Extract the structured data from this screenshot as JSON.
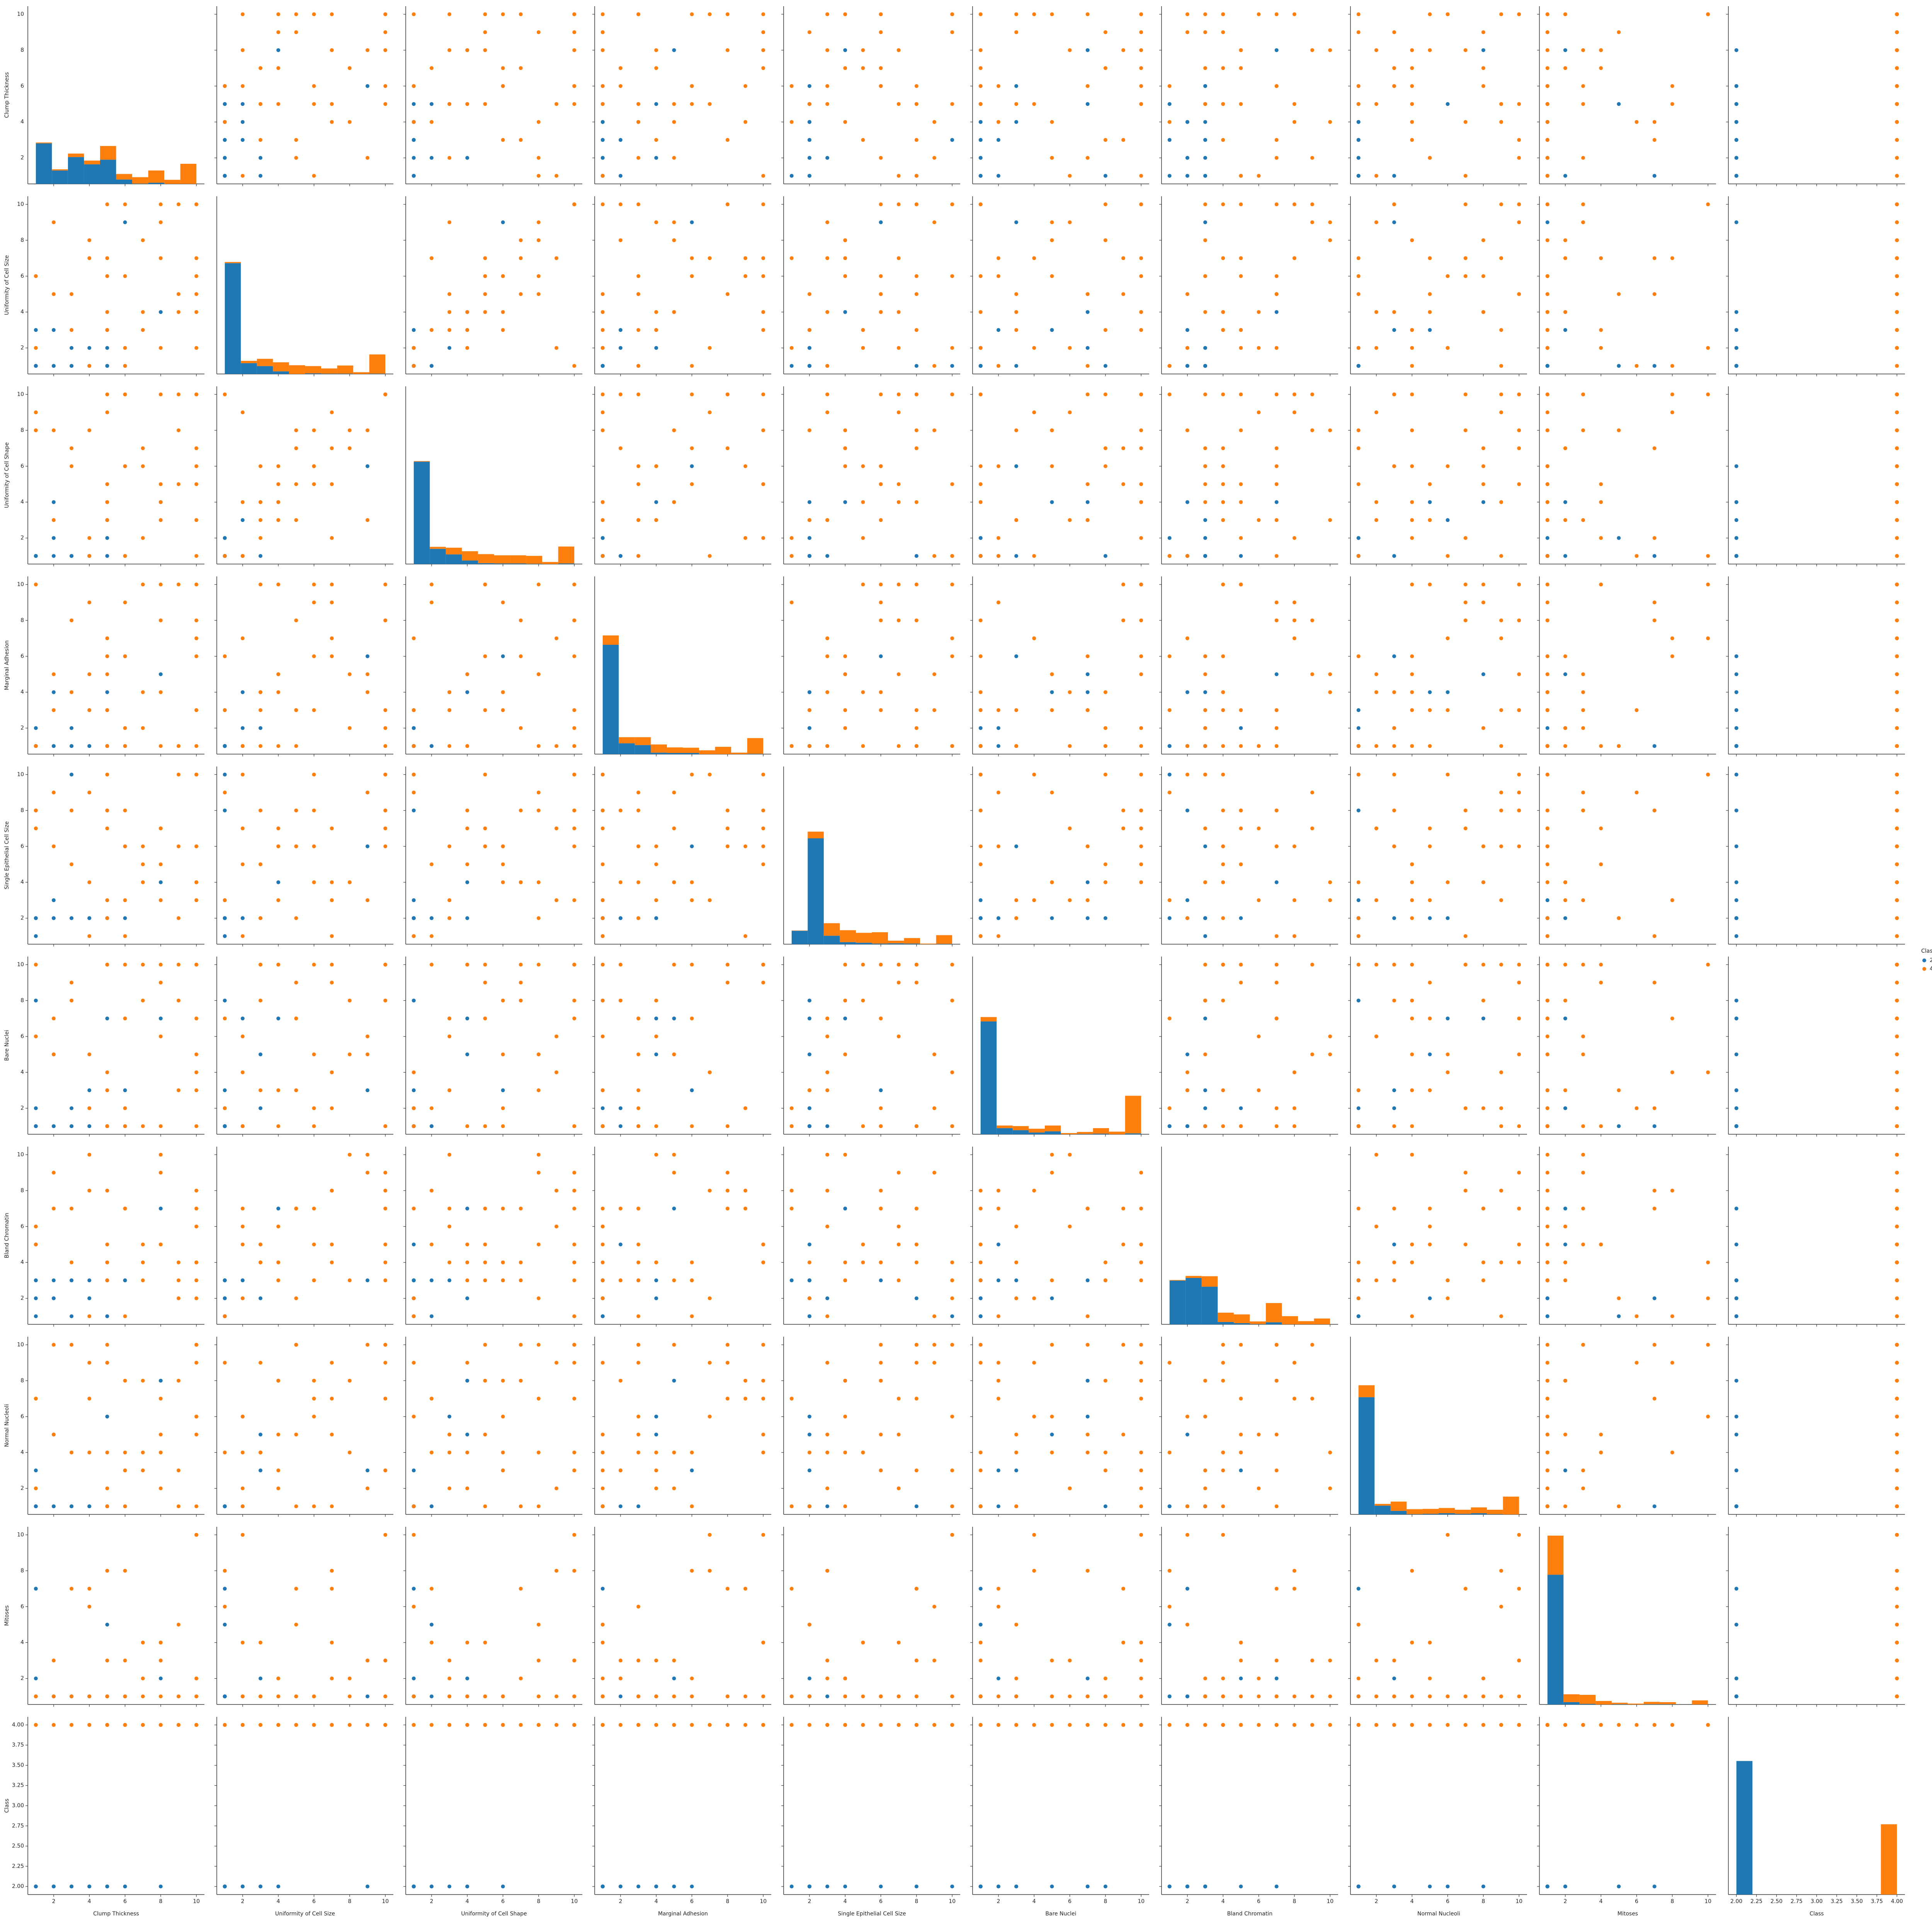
{
  "chart_data": {
    "type": "pairplot",
    "variables": [
      "Clump Thickness",
      "Uniformity of Cell Size",
      "Uniformity of Cell Shape",
      "Marginal Adhesion",
      "Single Epithelial Cell Size",
      "Bare Nuclei",
      "Bland Chromatin",
      "Normal Nucleoli",
      "Mitoses",
      "Class"
    ],
    "axes": [
      {
        "lim": [
          0.55,
          10.45
        ],
        "ticks": [
          2,
          4,
          6,
          8,
          10
        ],
        "bins": [
          1,
          1.9,
          2.8,
          3.7,
          4.6,
          5.5,
          6.4,
          7.3,
          8.2,
          9.1,
          10
        ]
      },
      {
        "lim": [
          0.55,
          10.45
        ],
        "ticks": [
          2,
          4,
          6,
          8,
          10
        ],
        "bins": [
          1,
          1.9,
          2.8,
          3.7,
          4.6,
          5.5,
          6.4,
          7.3,
          8.2,
          9.1,
          10
        ]
      },
      {
        "lim": [
          0.55,
          10.45
        ],
        "ticks": [
          2,
          4,
          6,
          8,
          10
        ],
        "bins": [
          1,
          1.9,
          2.8,
          3.7,
          4.6,
          5.5,
          6.4,
          7.3,
          8.2,
          9.1,
          10
        ]
      },
      {
        "lim": [
          0.55,
          10.45
        ],
        "ticks": [
          2,
          4,
          6,
          8,
          10
        ],
        "bins": [
          1,
          1.9,
          2.8,
          3.7,
          4.6,
          5.5,
          6.4,
          7.3,
          8.2,
          9.1,
          10
        ]
      },
      {
        "lim": [
          0.55,
          10.45
        ],
        "ticks": [
          2,
          4,
          6,
          8,
          10
        ],
        "bins": [
          1,
          1.9,
          2.8,
          3.7,
          4.6,
          5.5,
          6.4,
          7.3,
          8.2,
          9.1,
          10
        ]
      },
      {
        "lim": [
          0.55,
          10.45
        ],
        "ticks": [
          2,
          4,
          6,
          8,
          10
        ],
        "bins": [
          1,
          1.9,
          2.8,
          3.7,
          4.6,
          5.5,
          6.4,
          7.3,
          8.2,
          9.1,
          10
        ]
      },
      {
        "lim": [
          0.55,
          10.45
        ],
        "ticks": [
          2,
          4,
          6,
          8,
          10
        ],
        "bins": [
          1,
          1.9,
          2.8,
          3.7,
          4.6,
          5.5,
          6.4,
          7.3,
          8.2,
          9.1,
          10
        ]
      },
      {
        "lim": [
          0.55,
          10.45
        ],
        "ticks": [
          2,
          4,
          6,
          8,
          10
        ],
        "bins": [
          1,
          1.9,
          2.8,
          3.7,
          4.6,
          5.5,
          6.4,
          7.3,
          8.2,
          9.1,
          10
        ]
      },
      {
        "lim": [
          0.55,
          10.45
        ],
        "ticks": [
          2,
          4,
          6,
          8,
          10
        ],
        "bins": [
          1,
          1.9,
          2.8,
          3.7,
          4.6,
          5.5,
          6.4,
          7.3,
          8.2,
          9.1,
          10
        ]
      },
      {
        "lim": [
          1.9,
          4.1
        ],
        "ticks": [
          {
            "value": 2,
            "label": "2.00"
          },
          {
            "value": 2.25,
            "label": "2.25"
          },
          {
            "value": 2.5,
            "label": "2.50"
          },
          {
            "value": 2.75,
            "label": "2.75"
          },
          {
            "value": 3,
            "label": "3.00"
          },
          {
            "value": 3.25,
            "label": "3.25"
          },
          {
            "value": 3.5,
            "label": "3.50"
          },
          {
            "value": 3.75,
            "label": "3.75"
          },
          {
            "value": 4,
            "label": "4.00"
          }
        ],
        "bins": [
          2,
          2.2,
          2.4,
          2.6,
          2.8,
          3,
          3.2,
          3.4,
          3.6,
          3.8,
          4
        ]
      }
    ],
    "legend_title": "Class",
    "series": [
      {
        "name": "2",
        "color": "#1f77b4",
        "rows": [
          [
            5,
            1,
            1,
            1,
            2,
            1,
            3,
            1,
            1,
            2
          ],
          [
            3,
            1,
            1,
            1,
            2,
            2,
            3,
            1,
            1,
            2
          ],
          [
            4,
            1,
            1,
            3,
            2,
            1,
            3,
            1,
            1,
            2
          ],
          [
            1,
            1,
            1,
            1,
            2,
            1,
            1,
            1,
            1,
            2
          ],
          [
            2,
            1,
            2,
            1,
            2,
            1,
            3,
            1,
            1,
            2
          ],
          [
            1,
            1,
            1,
            1,
            1,
            1,
            3,
            1,
            1,
            2
          ],
          [
            4,
            2,
            1,
            1,
            2,
            1,
            2,
            1,
            1,
            2
          ],
          [
            6,
            1,
            1,
            1,
            2,
            1,
            3,
            1,
            1,
            2
          ],
          [
            3,
            2,
            1,
            2,
            2,
            1,
            3,
            1,
            1,
            2
          ],
          [
            5,
            2,
            3,
            4,
            2,
            7,
            3,
            6,
            1,
            2
          ],
          [
            1,
            3,
            1,
            2,
            2,
            2,
            5,
            3,
            2,
            2
          ],
          [
            8,
            4,
            4,
            5,
            4,
            7,
            7,
            8,
            2,
            2
          ],
          [
            6,
            9,
            6,
            6,
            6,
            3,
            3,
            3,
            1,
            2
          ],
          [
            2,
            1,
            1,
            1,
            3,
            1,
            2,
            1,
            1,
            2
          ],
          [
            4,
            1,
            1,
            1,
            2,
            3,
            2,
            1,
            1,
            2
          ],
          [
            3,
            1,
            1,
            1,
            10,
            1,
            1,
            1,
            1,
            2
          ],
          [
            1,
            1,
            1,
            1,
            8,
            1,
            2,
            1,
            7,
            2
          ],
          [
            5,
            1,
            2,
            1,
            2,
            1,
            1,
            1,
            5,
            2
          ],
          [
            2,
            3,
            4,
            4,
            2,
            5,
            2,
            5,
            1,
            2
          ],
          [
            1,
            1,
            1,
            1,
            2,
            8,
            3,
            1,
            1,
            2
          ]
        ],
        "hist": [
          [
            139,
            46,
            92,
            67,
            83,
            15,
            1,
            4,
            0,
            0
          ],
          [
            380,
            37,
            27,
            9,
            0,
            2,
            1,
            1,
            0,
            1
          ],
          [
            351,
            52,
            33,
            12,
            3,
            2,
            2,
            1,
            0,
            2
          ],
          [
            375,
            37,
            31,
            5,
            4,
            4,
            0,
            0,
            0,
            1
          ],
          [
            46,
            363,
            29,
            7,
            5,
            2,
            3,
            2,
            0,
            1
          ],
          [
            387,
            21,
            14,
            6,
            10,
            0,
            1,
            2,
            0,
            3
          ],
          [
            150,
            159,
            129,
            8,
            4,
            1,
            7,
            0,
            0,
            0
          ],
          [
            402,
            30,
            12,
            1,
            2,
            4,
            2,
            4,
            1,
            0
          ],
          [
            445,
            8,
            2,
            0,
            1,
            0,
            1,
            1,
            0,
            0
          ],
          [
            458,
            0,
            0,
            0,
            0,
            0,
            0,
            0,
            0,
            0
          ]
        ]
      },
      {
        "name": "4",
        "color": "#ff7f0e",
        "rows": [
          [
            8,
            10,
            10,
            8,
            7,
            10,
            9,
            7,
            1,
            4
          ],
          [
            5,
            3,
            3,
            3,
            2,
            3,
            4,
            4,
            1,
            4
          ],
          [
            8,
            7,
            5,
            10,
            7,
            9,
            5,
            5,
            4,
            4
          ],
          [
            7,
            4,
            6,
            4,
            6,
            1,
            4,
            3,
            1,
            4
          ],
          [
            10,
            7,
            7,
            6,
            4,
            10,
            4,
            1,
            2,
            4
          ],
          [
            7,
            3,
            2,
            10,
            5,
            10,
            5,
            4,
            4,
            4
          ],
          [
            10,
            5,
            5,
            3,
            6,
            7,
            7,
            10,
            1,
            4
          ],
          [
            5,
            10,
            10,
            3,
            8,
            1,
            5,
            10,
            3,
            4
          ],
          [
            5,
            4,
            4,
            5,
            7,
            10,
            3,
            2,
            1,
            4
          ],
          [
            10,
            10,
            10,
            8,
            6,
            1,
            8,
            9,
            1,
            4
          ],
          [
            6,
            2,
            1,
            1,
            1,
            1,
            7,
            1,
            1,
            4
          ],
          [
            9,
            4,
            5,
            10,
            6,
            10,
            4,
            8,
            1,
            4
          ],
          [
            3,
            5,
            7,
            8,
            8,
            9,
            7,
            10,
            7,
            4
          ],
          [
            10,
            6,
            6,
            3,
            4,
            5,
            3,
            6,
            1,
            4
          ],
          [
            4,
            8,
            8,
            5,
            4,
            5,
            10,
            4,
            1,
            4
          ],
          [
            10,
            10,
            10,
            10,
            10,
            10,
            4,
            10,
            10,
            4
          ],
          [
            6,
            6,
            6,
            9,
            6,
            2,
            7,
            8,
            1,
            4
          ],
          [
            5,
            6,
            5,
            6,
            10,
            1,
            3,
            1,
            1,
            4
          ],
          [
            9,
            5,
            8,
            1,
            2,
            3,
            2,
            1,
            5,
            4
          ],
          [
            8,
            2,
            4,
            1,
            5,
            1,
            5,
            4,
            4,
            4
          ],
          [
            2,
            5,
            3,
            3,
            6,
            7,
            7,
            5,
            1,
            4
          ],
          [
            10,
            4,
            3,
            1,
            3,
            3,
            6,
            5,
            2,
            4
          ],
          [
            6,
            10,
            10,
            2,
            8,
            10,
            7,
            3,
            3,
            4
          ],
          [
            1,
            6,
            8,
            10,
            8,
            10,
            5,
            7,
            1,
            4
          ],
          [
            5,
            7,
            9,
            7,
            3,
            4,
            8,
            9,
            8,
            4
          ],
          [
            4,
            1,
            1,
            3,
            9,
            2,
            1,
            9,
            6,
            4
          ],
          [
            8,
            9,
            3,
            4,
            3,
            6,
            10,
            2,
            3,
            4
          ],
          [
            3,
            3,
            6,
            4,
            5,
            8,
            4,
            4,
            1,
            4
          ],
          [
            7,
            8,
            7,
            2,
            4,
            8,
            3,
            8,
            2,
            4
          ],
          [
            9,
            10,
            10,
            1,
            10,
            8,
            3,
            3,
            1,
            4
          ],
          [
            5,
            3,
            4,
            1,
            8,
            10,
            4,
            9,
            1,
            4
          ],
          [
            10,
            2,
            1,
            7,
            10,
            4,
            2,
            6,
            10,
            4
          ],
          [
            4,
            7,
            2,
            9,
            1,
            2,
            8,
            7,
            7,
            4
          ],
          [
            2,
            9,
            8,
            5,
            9,
            5,
            9,
            10,
            3,
            4
          ],
          [
            6,
            1,
            10,
            6,
            3,
            7,
            1,
            4,
            8,
            4
          ],
          [
            1,
            2,
            9,
            1,
            7,
            6,
            6,
            2,
            1,
            4
          ]
        ],
        "hist": [
          [
            3,
            4,
            12,
            13,
            47,
            19,
            22,
            42,
            14,
            69
          ],
          [
            4,
            8,
            25,
            31,
            30,
            25,
            18,
            28,
            6,
            66
          ],
          [
            2,
            7,
            23,
            32,
            31,
            28,
            28,
            27,
            7,
            58
          ],
          [
            32,
            21,
            27,
            28,
            19,
            18,
            13,
            25,
            5,
            54
          ],
          [
            1,
            23,
            43,
            41,
            34,
            39,
            9,
            19,
            2,
            30
          ],
          [
            15,
            9,
            14,
            13,
            20,
            4,
            7,
            19,
            9,
            129
          ],
          [
            2,
            7,
            36,
            32,
            30,
            9,
            66,
            28,
            11,
            20
          ],
          [
            41,
            6,
            32,
            17,
            17,
            18,
            14,
            20,
            15,
            61
          ],
          [
            134,
            27,
            31,
            12,
            5,
            3,
            8,
            7,
            0,
            14
          ],
          [
            0,
            0,
            0,
            0,
            0,
            0,
            0,
            0,
            0,
            241
          ]
        ]
      }
    ]
  }
}
